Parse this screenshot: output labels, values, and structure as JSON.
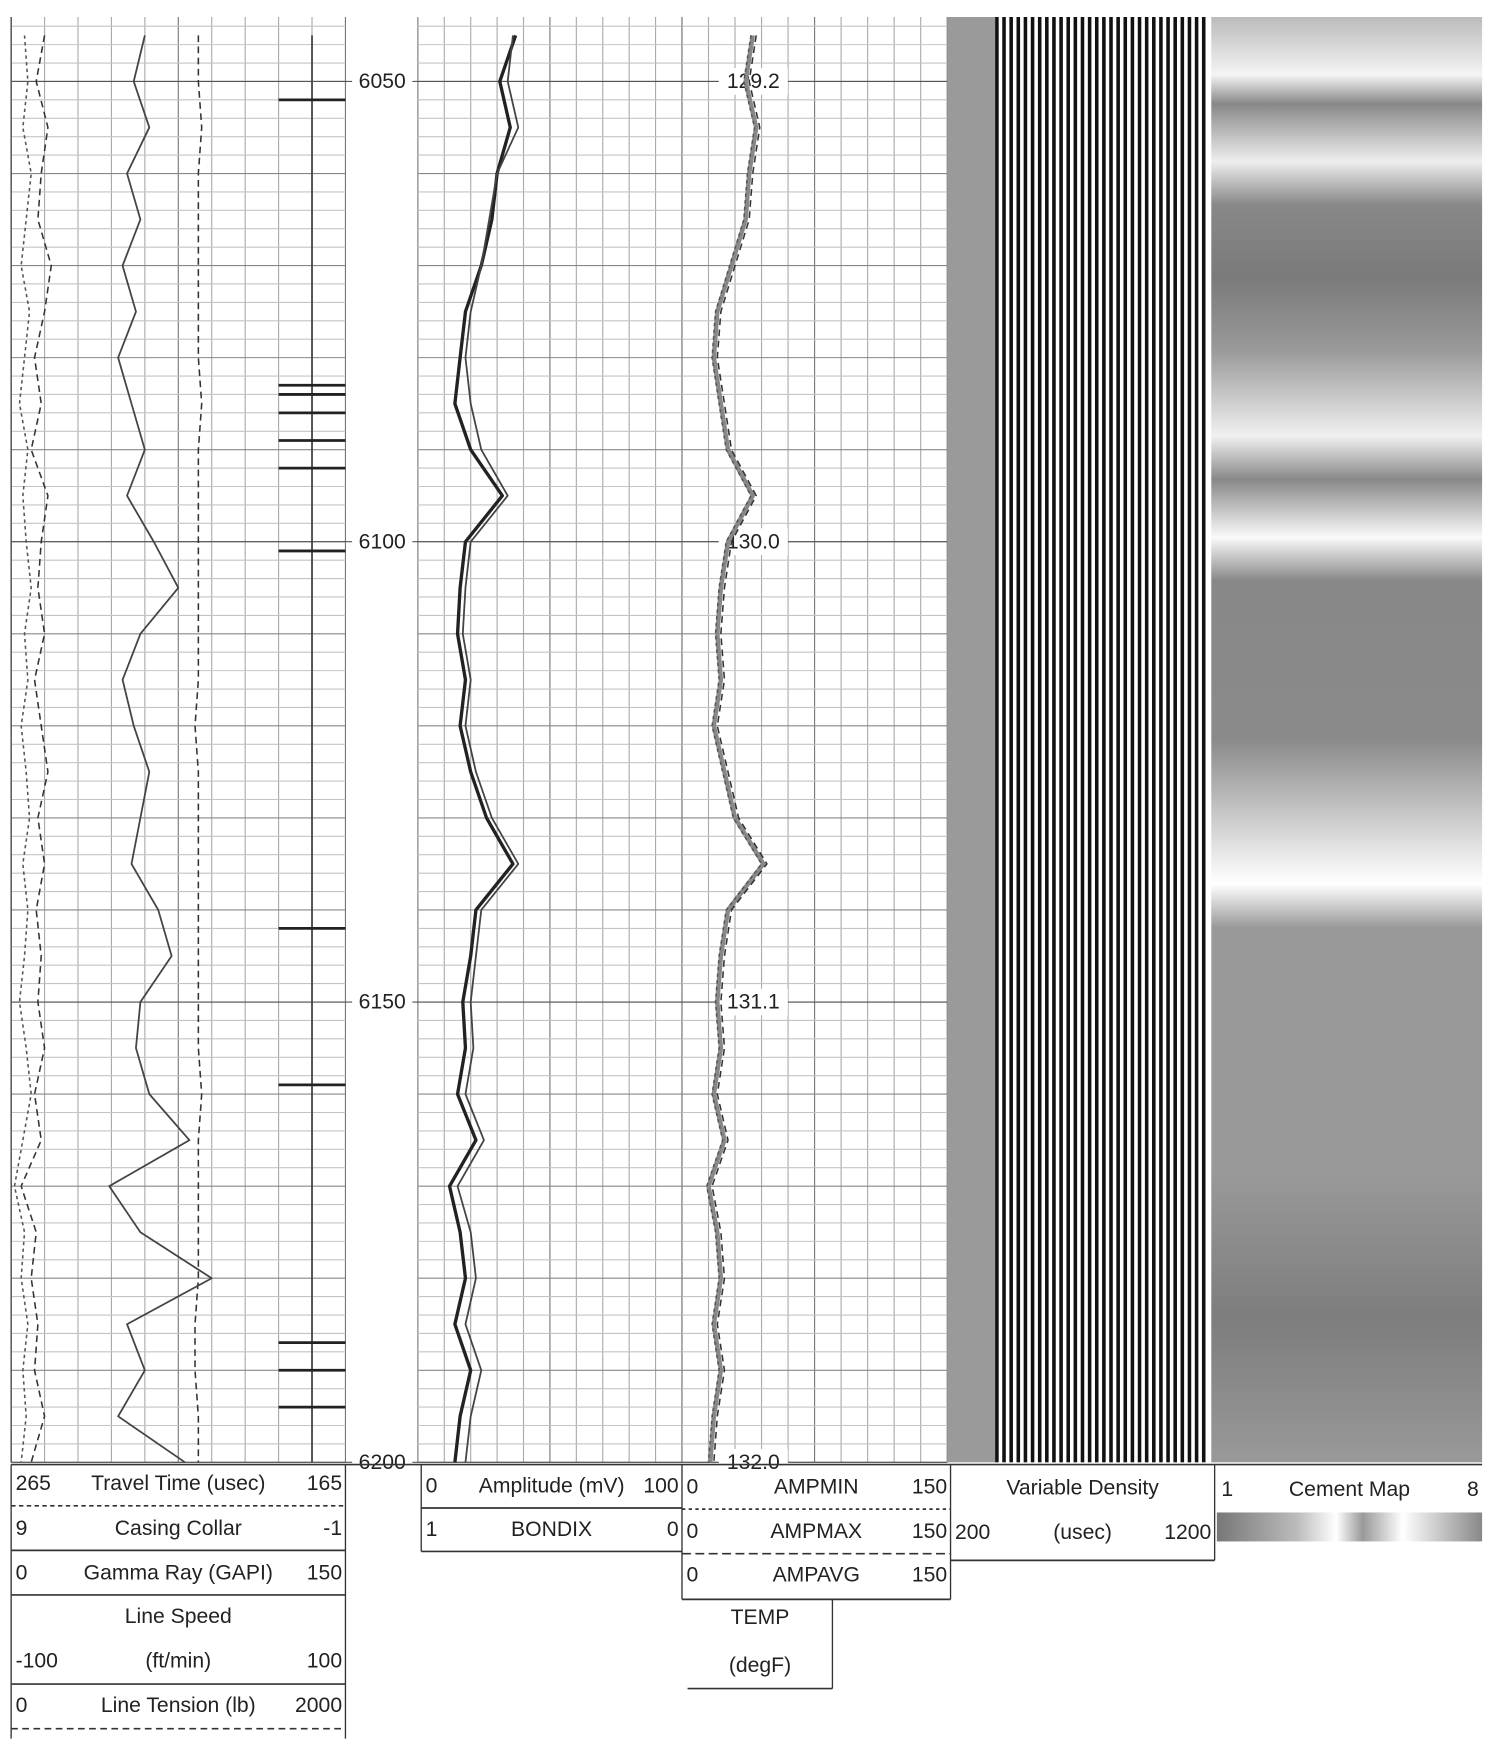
{
  "depth_range": [
    6043,
    6200
  ],
  "depth_ticks": [
    6050,
    6100,
    6150,
    6200
  ],
  "depths": [
    6045,
    6050,
    6055,
    6060,
    6065,
    6070,
    6075,
    6080,
    6085,
    6090,
    6095,
    6100,
    6105,
    6110,
    6115,
    6120,
    6125,
    6130,
    6135,
    6140,
    6145,
    6150,
    6155,
    6160,
    6165,
    6170,
    6175,
    6180,
    6185,
    6190,
    6195,
    6200
  ],
  "temperatures": [
    {
      "depth": 6050,
      "label": "129.2"
    },
    {
      "depth": 6100,
      "label": "130.0"
    },
    {
      "depth": 6150,
      "label": "131.1"
    },
    {
      "depth": 6200,
      "label": "132.0"
    }
  ],
  "track1": {
    "travel_time": {
      "left": 265,
      "name": "Travel Time (usec)",
      "right": 165,
      "style": "dashed",
      "values": [
        209,
        209,
        208,
        209,
        209,
        209,
        209,
        209,
        208,
        209,
        209,
        209,
        209,
        209,
        209,
        210,
        209,
        209,
        209,
        209,
        209,
        209,
        209,
        208,
        209,
        209,
        209,
        209,
        210,
        210,
        209,
        209
      ]
    },
    "casing_collar": {
      "left": 9,
      "name": "Casing Collar",
      "right": -1,
      "style": "solid",
      "values": [
        0,
        0,
        0,
        0,
        0,
        0,
        0,
        0,
        0,
        0,
        0,
        0,
        0,
        0,
        0,
        0,
        0,
        0,
        0,
        0,
        0,
        0,
        0,
        0,
        0,
        0,
        0,
        0,
        0,
        0,
        0,
        0
      ],
      "collars": [
        6052,
        6083,
        6084,
        6086,
        6089,
        6092,
        6101,
        6142,
        6159,
        6187,
        6190,
        6194
      ]
    },
    "gamma_ray": {
      "left": 0,
      "name": "Gamma Ray (GAPI)",
      "right": 150,
      "style": "solid",
      "values": [
        60,
        55,
        62,
        52,
        58,
        50,
        56,
        48,
        54,
        60,
        52,
        64,
        75,
        58,
        50,
        55,
        62,
        58,
        54,
        66,
        72,
        58,
        56,
        62,
        80,
        44,
        58,
        90,
        52,
        60,
        48,
        78
      ]
    },
    "line_speed": {
      "name": "Line Speed",
      "left": -100,
      "unit": "(ft/min)",
      "right": 100,
      "style": "dotted",
      "values": [
        -92,
        -90,
        -93,
        -88,
        -91,
        -94,
        -89,
        -92,
        -95,
        -90,
        -93,
        -91,
        -88,
        -92,
        -90,
        -94,
        -91,
        -89,
        -93,
        -90,
        -92,
        -95,
        -91,
        -88,
        -93,
        -98,
        -92,
        -94,
        -90,
        -93,
        -91,
        -94
      ]
    },
    "line_tension": {
      "left": 0,
      "name": "Line Tension (lb)",
      "right": 2000,
      "style": "dashed",
      "values": [
        200,
        150,
        220,
        180,
        160,
        240,
        200,
        140,
        180,
        120,
        220,
        180,
        160,
        200,
        140,
        180,
        220,
        160,
        200,
        150,
        180,
        160,
        200,
        140,
        180,
        60,
        150,
        120,
        160,
        140,
        200,
        120
      ]
    }
  },
  "track2": {
    "amplitude": {
      "left": 0,
      "name": "Amplitude (mV)",
      "right": 100,
      "style": "thick",
      "values": [
        37,
        31,
        35,
        30,
        28,
        24,
        18,
        16,
        14,
        20,
        32,
        18,
        16,
        15,
        18,
        16,
        20,
        26,
        36,
        22,
        20,
        17,
        18,
        15,
        22,
        12,
        16,
        18,
        14,
        20,
        16,
        14
      ]
    },
    "bondix": {
      "left": 1,
      "name": "BONDIX",
      "right": 0,
      "style": "solid",
      "values": [
        0.64,
        0.66,
        0.62,
        0.7,
        0.73,
        0.76,
        0.8,
        0.82,
        0.8,
        0.76,
        0.66,
        0.8,
        0.82,
        0.83,
        0.8,
        0.82,
        0.78,
        0.72,
        0.62,
        0.76,
        0.78,
        0.8,
        0.79,
        0.82,
        0.75,
        0.85,
        0.8,
        0.78,
        0.82,
        0.76,
        0.8,
        0.82
      ]
    }
  },
  "track3": {
    "ampmin": {
      "left": 0,
      "name": "AMPMIN",
      "right": 150,
      "style": "dotted",
      "values": [
        39,
        35,
        41,
        37,
        35,
        27,
        19,
        17,
        21,
        25,
        39,
        25,
        21,
        19,
        21,
        17,
        23,
        29,
        45,
        25,
        21,
        19,
        21,
        17,
        23,
        14,
        19,
        21,
        17,
        21,
        17,
        15
      ]
    },
    "ampmax": {
      "left": 0,
      "name": "AMPMAX",
      "right": 150,
      "style": "dashed",
      "values": [
        42,
        38,
        44,
        40,
        38,
        30,
        22,
        20,
        24,
        28,
        42,
        28,
        24,
        22,
        24,
        20,
        26,
        32,
        48,
        28,
        24,
        22,
        24,
        20,
        26,
        17,
        22,
        24,
        20,
        24,
        20,
        18
      ]
    },
    "ampavg": {
      "left": 0,
      "name": "AMPAVG",
      "right": 150,
      "style": "grey",
      "values": [
        40,
        36,
        42,
        38,
        36,
        28,
        20,
        18,
        22,
        26,
        40,
        26,
        22,
        20,
        22,
        18,
        24,
        30,
        46,
        26,
        22,
        20,
        22,
        18,
        24,
        15,
        20,
        22,
        18,
        22,
        18,
        16
      ]
    },
    "temp": {
      "name": "TEMP",
      "unit": "(degF)"
    }
  },
  "track4": {
    "name": "Variable Density",
    "left": 200,
    "unit": "(usec)",
    "right": 1200
  },
  "track5": {
    "left": 1,
    "name": "Cement Map",
    "right": 8
  }
}
